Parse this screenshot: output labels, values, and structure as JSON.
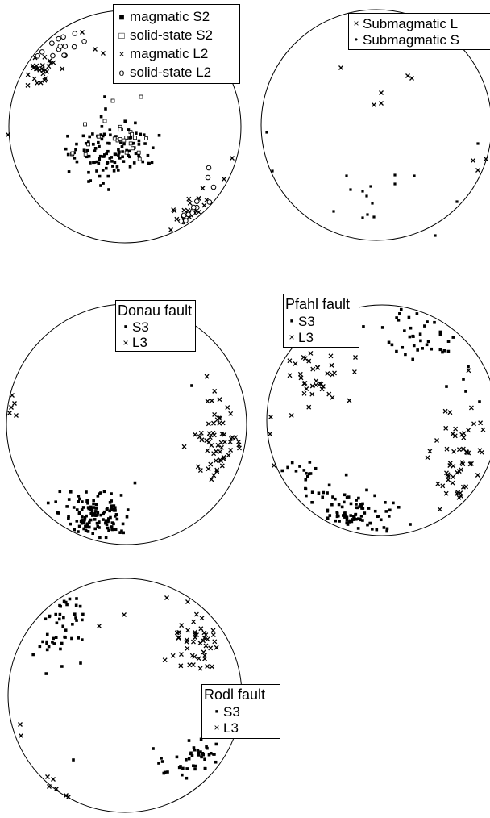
{
  "figure": {
    "plots": [
      {
        "id": "plot-1",
        "legend": {
          "title": "",
          "entries": [
            {
              "symbol": "square-filled",
              "label": "magmatic S2"
            },
            {
              "symbol": "square-open",
              "label": "solid-state S2"
            },
            {
              "symbol": "cross",
              "label": "magmatic L2"
            },
            {
              "symbol": "circle-open",
              "label": "solid-state L2"
            }
          ]
        }
      },
      {
        "id": "plot-2",
        "legend": {
          "title": "",
          "entries": [
            {
              "symbol": "cross",
              "label": "Submagmatic L"
            },
            {
              "symbol": "dot",
              "label": "Submagmatic S"
            }
          ]
        }
      },
      {
        "id": "plot-3",
        "legend": {
          "title": "Donau fault",
          "entries": [
            {
              "symbol": "square-filled",
              "label": "S3"
            },
            {
              "symbol": "cross",
              "label": "L3"
            }
          ]
        }
      },
      {
        "id": "plot-4",
        "legend": {
          "title": "Pfahl fault",
          "entries": [
            {
              "symbol": "square-filled",
              "label": "S3"
            },
            {
              "symbol": "cross",
              "label": "L3"
            }
          ]
        }
      },
      {
        "id": "plot-5",
        "legend": {
          "title": "Rodl fault",
          "entries": [
            {
              "symbol": "square-filled",
              "label": "S3"
            },
            {
              "symbol": "cross",
              "label": "L3"
            }
          ]
        }
      }
    ]
  }
}
